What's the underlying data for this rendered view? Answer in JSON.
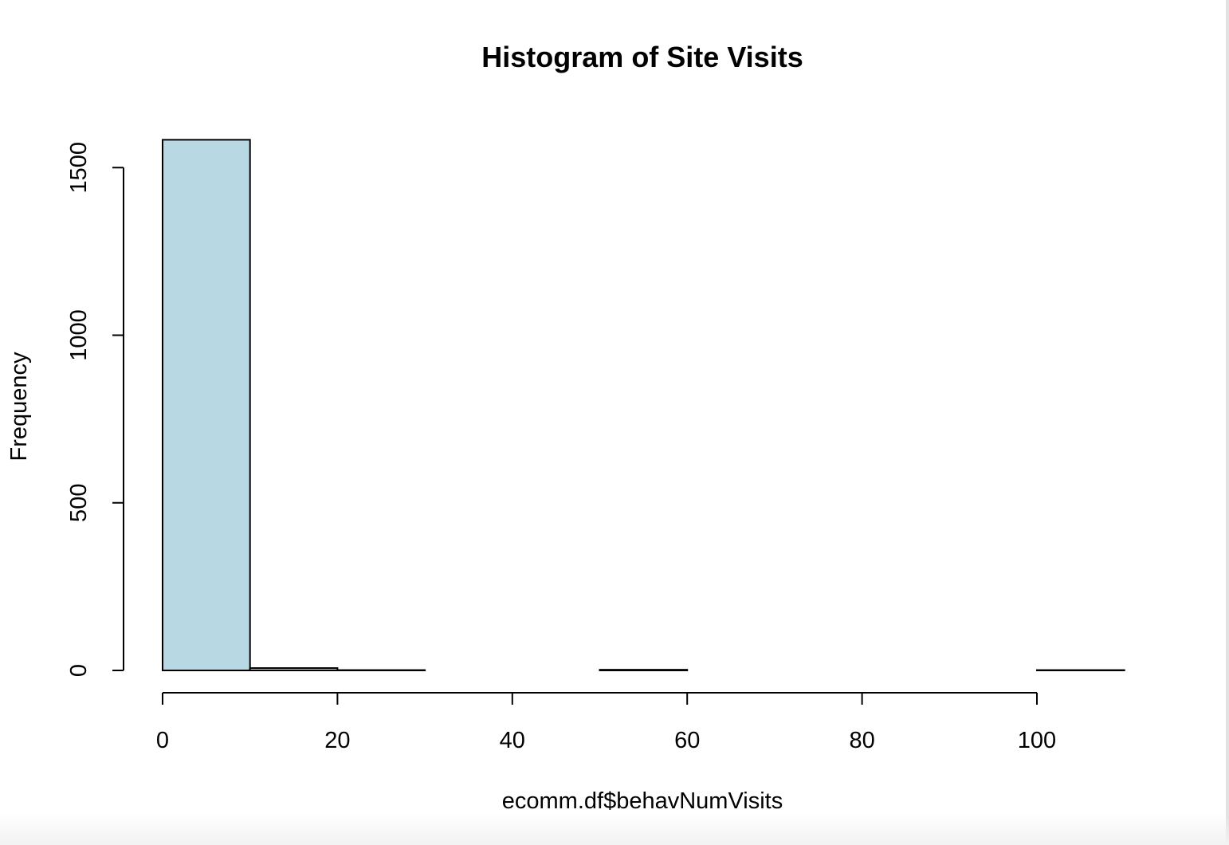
{
  "chart_data": {
    "type": "bar",
    "title": "Histogram of Site Visits",
    "xlabel": "ecomm.df$behavNumVisits",
    "ylabel": "Frequency",
    "bar_fill": "#b8d9e4",
    "bin_edges": [
      0,
      10,
      20,
      30,
      40,
      50,
      60,
      70,
      80,
      90,
      100,
      110
    ],
    "values": [
      1583,
      7,
      1,
      0,
      0,
      2,
      0,
      0,
      0,
      0,
      1
    ],
    "xlim": [
      0,
      110
    ],
    "ylim": [
      0,
      1583
    ],
    "x_ticks": [
      {
        "value": 0,
        "label": "0"
      },
      {
        "value": 20,
        "label": "20"
      },
      {
        "value": 40,
        "label": "40"
      },
      {
        "value": 60,
        "label": "60"
      },
      {
        "value": 80,
        "label": "80"
      },
      {
        "value": 100,
        "label": "100"
      }
    ],
    "y_ticks": [
      {
        "value": 0,
        "label": "0"
      },
      {
        "value": 500,
        "label": "500"
      },
      {
        "value": 1000,
        "label": "1000"
      },
      {
        "value": 1500,
        "label": "1500"
      }
    ],
    "grid": false,
    "legend": "none"
  }
}
